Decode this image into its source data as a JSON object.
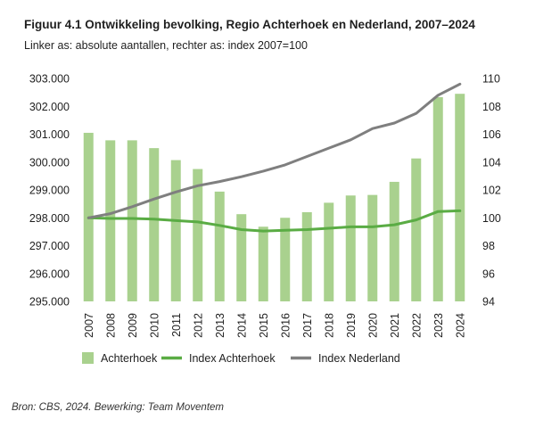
{
  "title": "Figuur 4.1 Ontwikkeling bevolking, Regio Achterhoek en Nederland, 2007–2024",
  "subtitle": "Linker as: absolute aantallen, rechter as: index 2007=100",
  "source": "Bron: CBS, 2024. Bewerking: Team Moventem",
  "colors": {
    "bar": "#a9d18e",
    "index_achterhoek": "#5aac44",
    "index_nederland": "#7f7f7f"
  },
  "chart_data": {
    "type": "bar",
    "categories": [
      "2007",
      "2008",
      "2009",
      "2010",
      "2011",
      "2012",
      "2013",
      "2014",
      "2015",
      "2016",
      "2017",
      "2018",
      "2019",
      "2020",
      "2021",
      "2022",
      "2023",
      "2024"
    ],
    "series": [
      {
        "name": "Achterhoek",
        "type": "bar",
        "axis": "left",
        "values": [
          301050,
          300780,
          300780,
          300500,
          300070,
          299750,
          298940,
          298130,
          297680,
          298000,
          298200,
          298540,
          298800,
          298820,
          299290,
          300130,
          302330,
          302450
        ]
      },
      {
        "name": "Index Achterhoek",
        "type": "line",
        "axis": "right",
        "values": [
          100.0,
          99.95,
          99.95,
          99.9,
          99.8,
          99.7,
          99.45,
          99.15,
          99.05,
          99.1,
          99.15,
          99.25,
          99.35,
          99.35,
          99.5,
          99.85,
          100.45,
          100.5
        ]
      },
      {
        "name": "Index Nederland",
        "type": "line",
        "axis": "right",
        "values": [
          100.0,
          100.3,
          100.8,
          101.35,
          101.85,
          102.3,
          102.6,
          102.95,
          103.35,
          103.8,
          104.4,
          105.0,
          105.6,
          106.4,
          106.8,
          107.5,
          108.8,
          109.6
        ]
      }
    ],
    "y_left": {
      "ylim": [
        295000,
        303000
      ],
      "ticks": [
        "295.000",
        "296.000",
        "297.000",
        "298.000",
        "299.000",
        "300.000",
        "301.000",
        "302.000",
        "303.000"
      ]
    },
    "y_right": {
      "ylim": [
        94,
        110
      ],
      "ticks": [
        "94",
        "96",
        "98",
        "100",
        "102",
        "104",
        "106",
        "108",
        "110"
      ]
    },
    "grid": false,
    "legend": {
      "placement": "bottom",
      "entries": [
        "Achterhoek",
        "Index Achterhoek",
        "Index Nederland"
      ]
    }
  }
}
